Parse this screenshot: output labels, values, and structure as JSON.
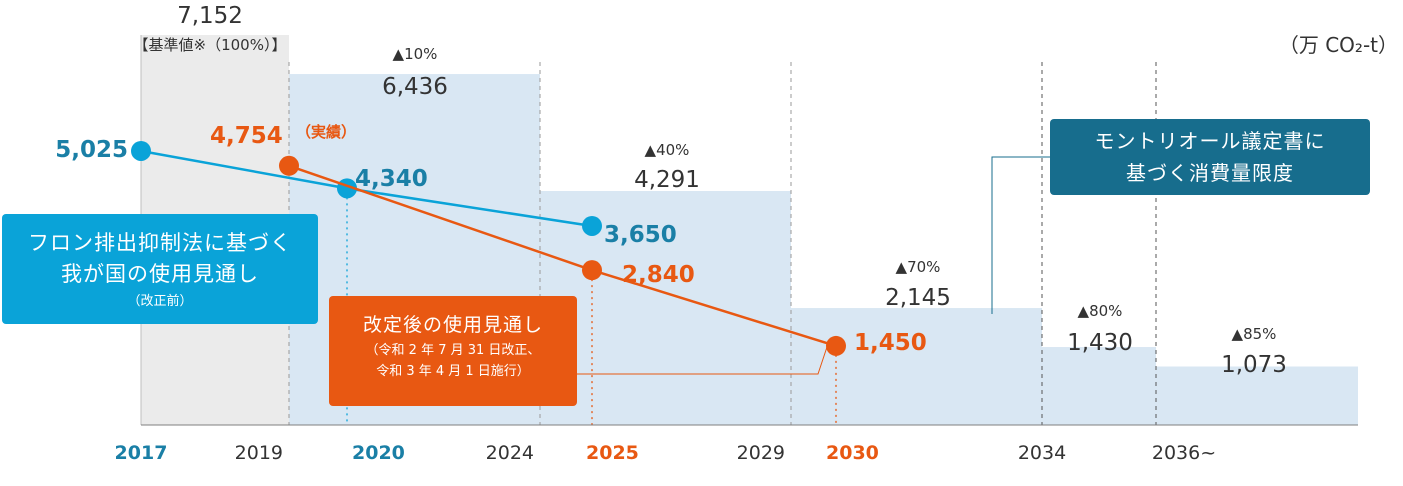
{
  "chart_data": {
    "type": "bar+line",
    "unit": "（万 CO₂-t）",
    "baseline_label": "【基準値※（100%）】",
    "x_ticks": [
      {
        "label": "2017",
        "color": "#1a7fa6"
      },
      {
        "label": "2019",
        "color": "#333333"
      },
      {
        "label": "2020",
        "color": "#1a7fa6"
      },
      {
        "label": "2024",
        "color": "#333333"
      },
      {
        "label": "2025",
        "color": "#e85812"
      },
      {
        "label": "2029",
        "color": "#333333"
      },
      {
        "label": "2030",
        "color": "#e85812"
      },
      {
        "label": "2034",
        "color": "#333333"
      },
      {
        "label": "2036~",
        "color": "#333333"
      }
    ],
    "consumption_limit_steps": [
      {
        "from": "2017",
        "to": "2019",
        "value": 7152,
        "value_label": "7,152",
        "pct_label": ""
      },
      {
        "from": "2019",
        "to": "2024",
        "value": 6436,
        "value_label": "6,436",
        "pct_label": "▲10%"
      },
      {
        "from": "2024",
        "to": "2029",
        "value": 4291,
        "value_label": "4,291",
        "pct_label": "▲40%"
      },
      {
        "from": "2029",
        "to": "2034",
        "value": 2145,
        "value_label": "2,145",
        "pct_label": "▲70%"
      },
      {
        "from": "2034",
        "to": "2036~",
        "value": 1430,
        "value_label": "1,430",
        "pct_label": "▲80%"
      },
      {
        "from": "2036~",
        "to": "",
        "value": 1073,
        "value_label": "1,073",
        "pct_label": "▲85%"
      }
    ],
    "series": [
      {
        "color": "#0aa3d8",
        "label_color": "#1a7fa6",
        "points": [
          {
            "x": "2017",
            "y": 5025,
            "label": "5,025"
          },
          {
            "x": "2020",
            "y": 4340,
            "label": "4,340"
          },
          {
            "x": "2025",
            "y": 3650,
            "label": "3,650"
          }
        ]
      },
      {
        "color": "#e85812",
        "label_color": "#e85812",
        "points": [
          {
            "x": "2019",
            "y": 4754,
            "label": "4,754",
            "note": "（実績）"
          },
          {
            "x": "2025",
            "y": 2840,
            "label": "2,840"
          },
          {
            "x": "2030",
            "y": 1450,
            "label": "1,450"
          }
        ]
      }
    ],
    "colors": {
      "baseline_fill": "#ebebeb",
      "step_fill": "#d9e7f3",
      "axis_text": "#333333"
    }
  },
  "callouts": {
    "blue": {
      "line1": "フロン排出抑制法に基づく",
      "line2": "我が国の使用見通し",
      "line3": "（改正前）"
    },
    "orange": {
      "line1": "改定後の使用見通し",
      "line2": "（令和 2 年 7 月 31 日改正、",
      "line3": "令和 3 年 4 月 1 日施行）"
    },
    "teal": {
      "line1": "モントリオール議定書に",
      "line2": "基づく消費量限度"
    }
  }
}
